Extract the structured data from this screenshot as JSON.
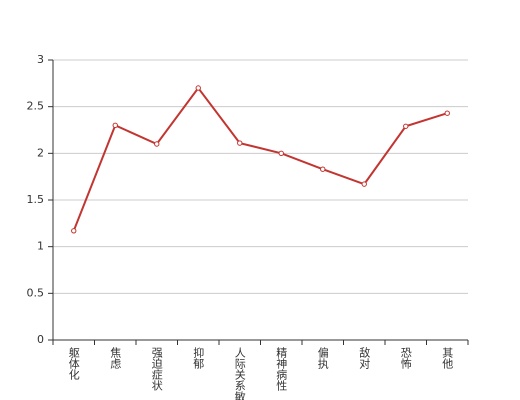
{
  "chart_data": {
    "type": "line",
    "categories": [
      "躯体化",
      "焦虑",
      "强迫症状",
      "抑郁",
      "人际关系敏感",
      "精神病性",
      "偏执",
      "敌对",
      "恐怖",
      "其他"
    ],
    "values": [
      1.17,
      2.3,
      2.1,
      2.7,
      2.11,
      2.0,
      1.83,
      1.67,
      2.29,
      2.43
    ],
    "color": "#c23531",
    "ylim": [
      0,
      3
    ],
    "yticks": [
      0,
      0.5,
      1,
      1.5,
      2,
      2.5,
      3
    ],
    "grid": true
  }
}
